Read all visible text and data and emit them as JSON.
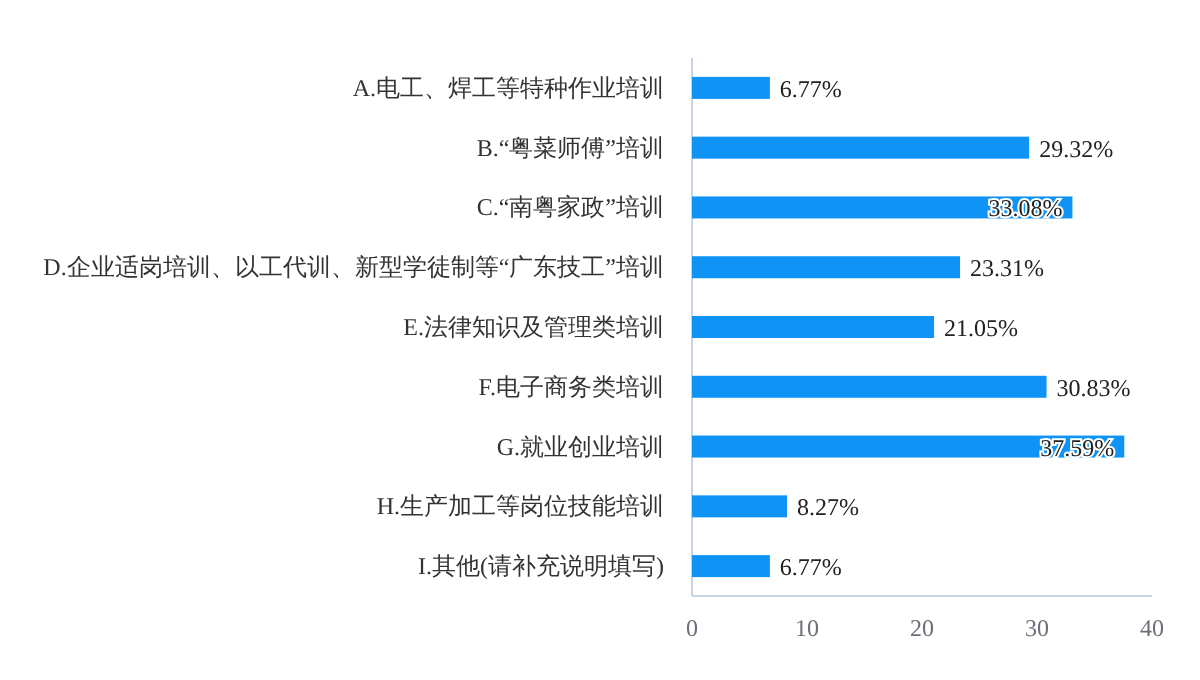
{
  "chart_data": {
    "type": "bar",
    "orientation": "horizontal",
    "categories": [
      "A.电工、焊工等特种作业培训",
      "B.“粤菜师傅”培训",
      "C.“南粤家政”培训",
      "D.企业适岗培训、以工代训、新型学徒制等“广东技工”培训",
      "E.法律知识及管理类培训",
      "F.电子商务类培训",
      "G.就业创业培训",
      "H.生产加工等岗位技能培训",
      "I.其他(请补充说明填写)"
    ],
    "values": [
      6.77,
      29.32,
      33.08,
      23.31,
      21.05,
      30.83,
      37.59,
      8.27,
      6.77
    ],
    "value_labels": [
      "6.77%",
      "29.32%",
      "33.08%",
      "23.31%",
      "21.05%",
      "30.83%",
      "37.59%",
      "8.27%",
      "6.77%"
    ],
    "color": "#0f94f5",
    "xlim": [
      0,
      40
    ],
    "xticks": [
      0,
      10,
      20,
      30,
      40
    ]
  }
}
